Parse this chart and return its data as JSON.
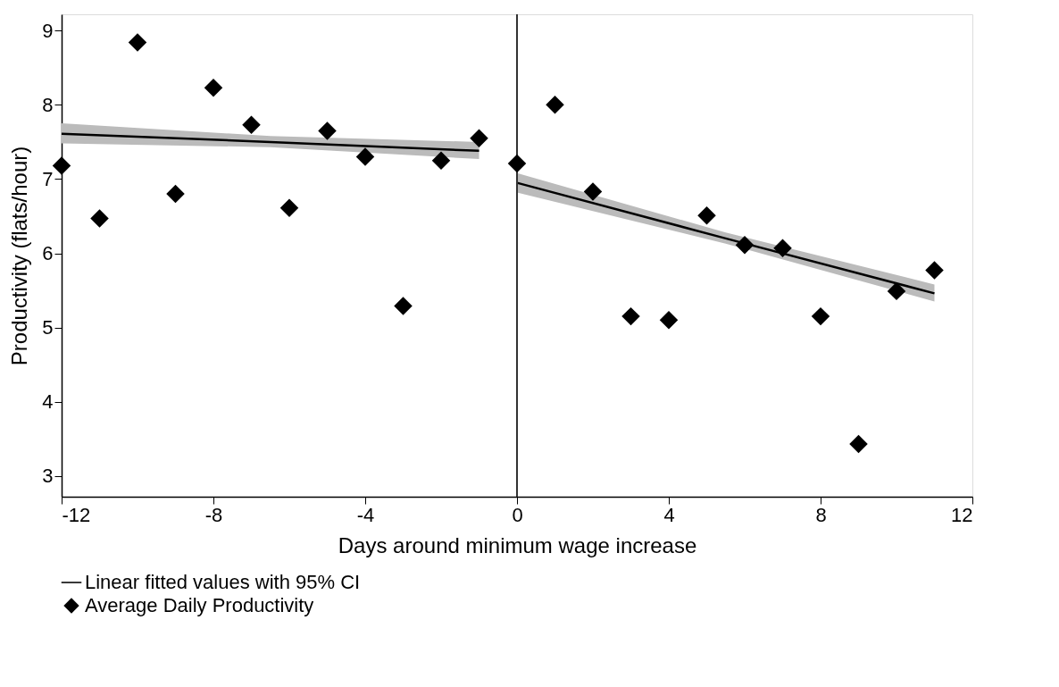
{
  "chart_data": {
    "type": "scatter",
    "xlabel": "Days around minimum wage increase",
    "ylabel": "Productivity (flats/hour)",
    "xlim": [
      -12,
      12
    ],
    "xticks": [
      -12,
      -8,
      -4,
      0,
      4,
      8,
      12
    ],
    "ylim": [
      2.72,
      9.22
    ],
    "yticks": [
      3,
      4,
      5,
      6,
      7,
      8,
      9
    ],
    "grid": false,
    "legend": "bottom",
    "marker": "diamond",
    "ref_lines": [
      {
        "axis": "x",
        "value": 0,
        "color": "#333333"
      }
    ],
    "series": [
      {
        "name": "Linear fitted values with 95% CI",
        "type": "line",
        "marker": "none",
        "color": "#000000",
        "line_style": "solid",
        "x": [
          -12,
          -6.5,
          -1,
          -0.5,
          0,
          5.5,
          11
        ],
        "values": [
          7.61,
          7.5,
          7.38,
          null,
          6.95,
          6.2,
          5.46
        ],
        "lower": [
          7.48,
          7.43,
          7.27,
          null,
          6.82,
          6.13,
          5.35
        ],
        "upper": [
          7.75,
          7.58,
          7.5,
          null,
          7.08,
          6.28,
          5.58
        ]
      },
      {
        "name": "Average Daily Productivity",
        "color": "#000000",
        "x": [
          -12,
          -11,
          -10,
          -9,
          -8,
          -7,
          -6,
          -5,
          -4,
          -3,
          -2,
          -1,
          0,
          1,
          2,
          3,
          4,
          5,
          6,
          7,
          8,
          9,
          10,
          11
        ],
        "values": [
          7.18,
          6.47,
          8.84,
          6.8,
          8.23,
          7.73,
          6.61,
          7.65,
          7.3,
          5.29,
          7.25,
          7.55,
          7.21,
          8.0,
          6.83,
          5.15,
          5.1,
          6.51,
          6.11,
          6.07,
          5.15,
          3.43,
          5.49,
          5.77
        ]
      }
    ]
  }
}
